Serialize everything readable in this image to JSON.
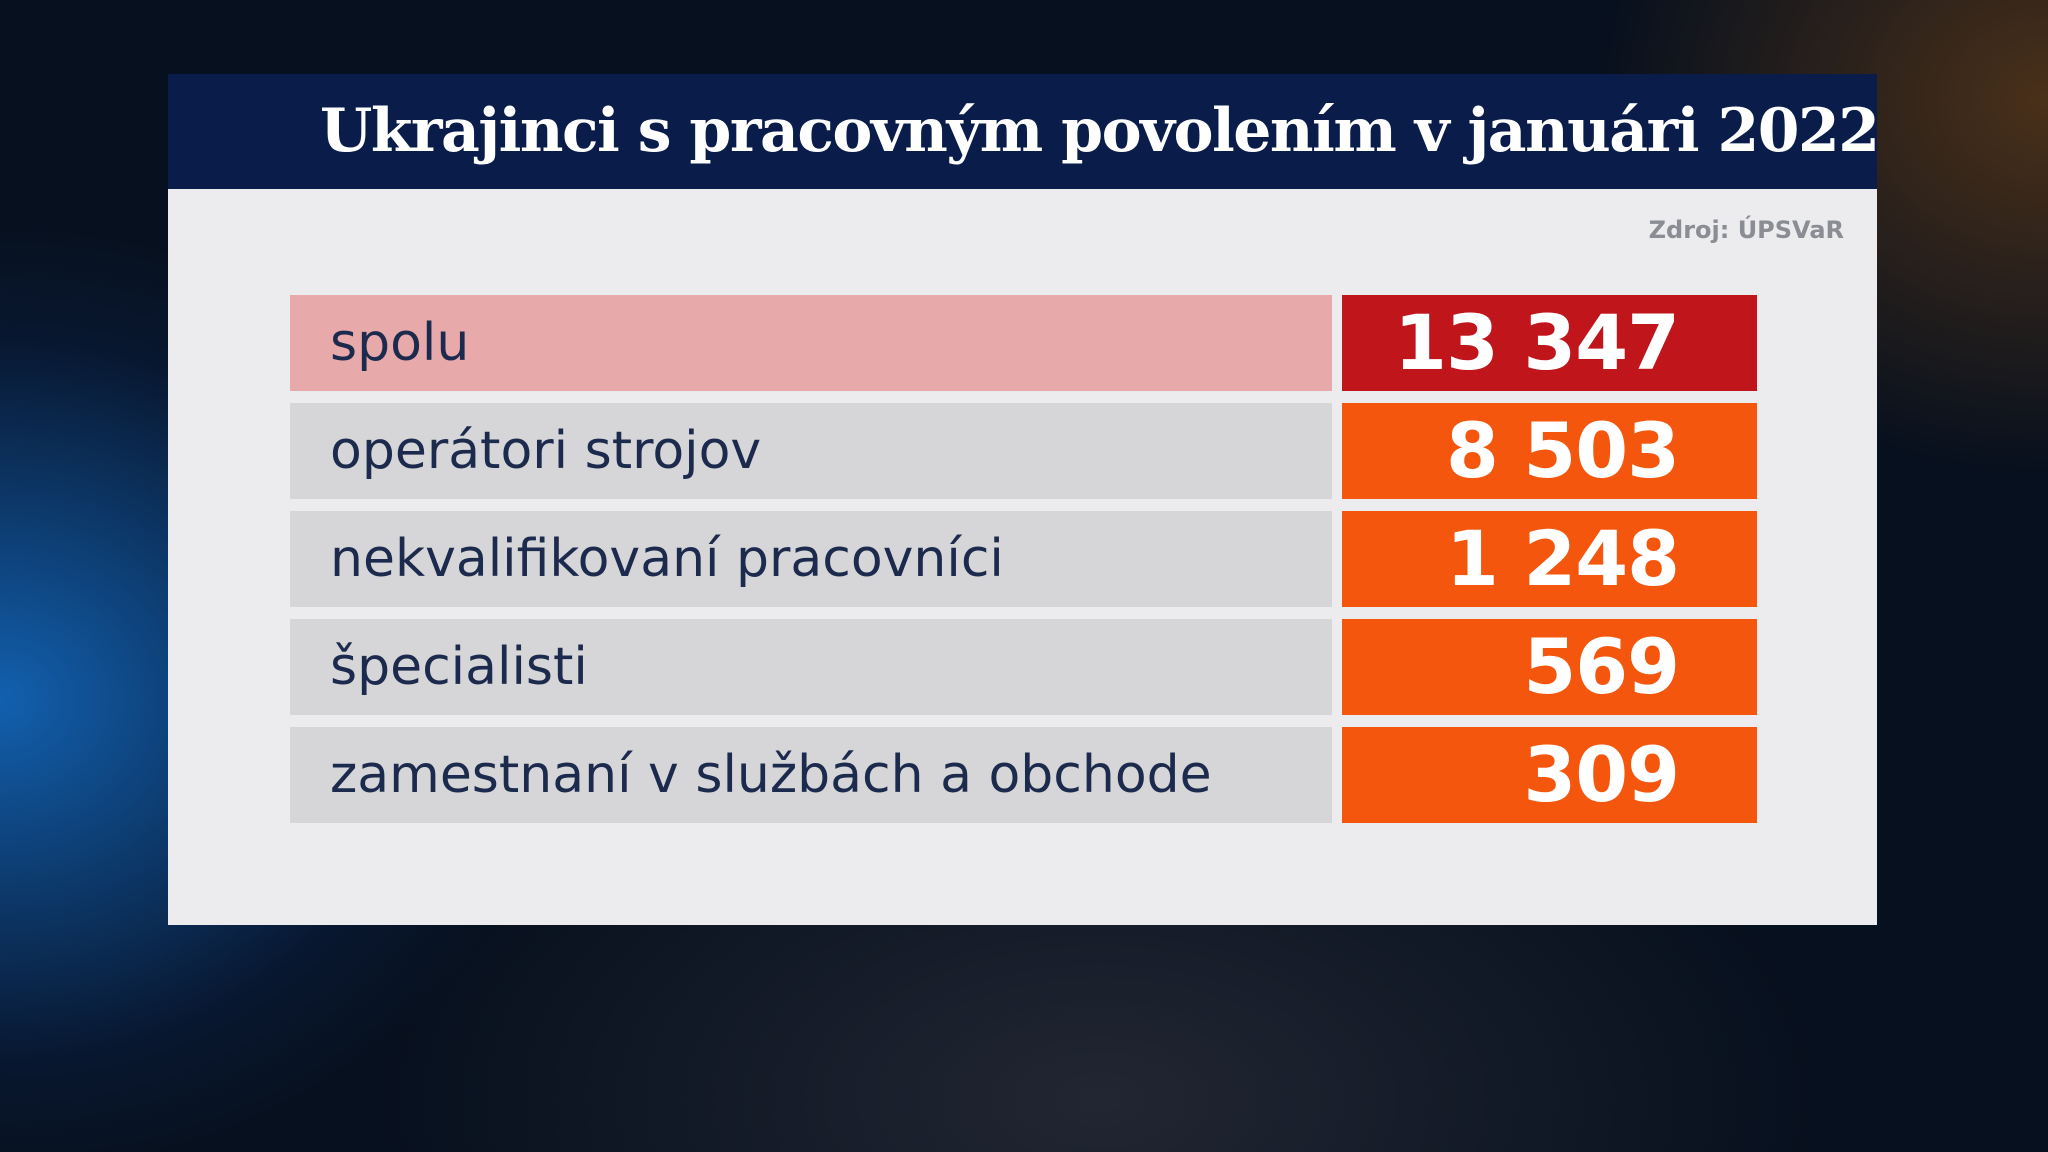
{
  "header": {
    "title": "Ukrajinci s pracovným povolením v januári 2022"
  },
  "source": "Zdroj: ÚPSVaR",
  "table": {
    "rows": [
      [
        "spolu",
        "13 347"
      ],
      [
        "operátori strojov",
        "8 503"
      ],
      [
        "nekvalifikovaní pracovníci",
        "1 248"
      ],
      [
        "špecialisti",
        "569"
      ],
      [
        "zamestnaní v službách a obchode",
        "309"
      ]
    ]
  }
}
